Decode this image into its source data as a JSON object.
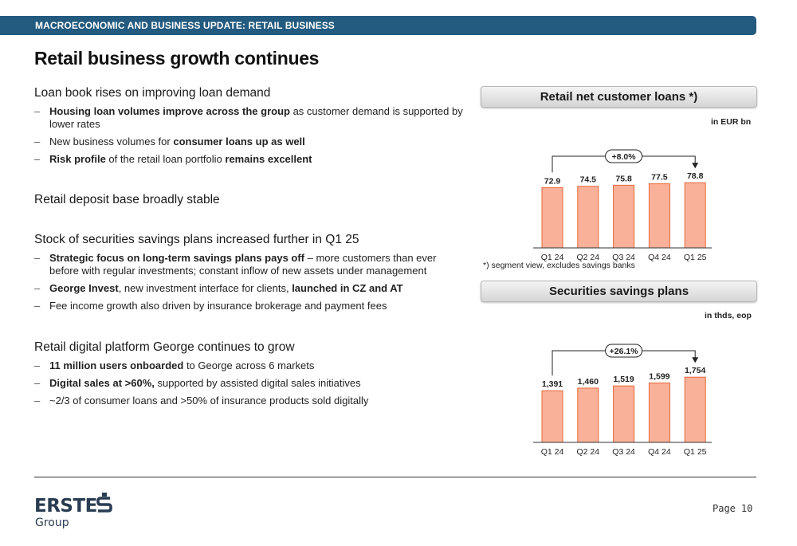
{
  "header": {
    "bar_title": "MACROECONOMIC AND BUSINESS UPDATE: RETAIL BUSINESS"
  },
  "title": "Retail business growth continues",
  "sections": [
    {
      "heading": "Loan book rises on improving loan demand",
      "items": [
        [
          {
            "t": "Housing loan volumes improve across the group",
            "b": true
          },
          {
            "t": " as customer demand is supported by lower rates",
            "b": false
          }
        ],
        [
          {
            "t": "New business volumes for ",
            "b": false
          },
          {
            "t": "consumer loans up as well",
            "b": true
          }
        ],
        [
          {
            "t": "Risk profile",
            "b": true
          },
          {
            "t": " of the retail loan portfolio ",
            "b": false
          },
          {
            "t": "remains excellent",
            "b": true
          }
        ]
      ]
    },
    {
      "heading": "Retail deposit base broadly stable",
      "items": []
    },
    {
      "heading": "Stock of securities savings plans increased further in Q1 25",
      "items": [
        [
          {
            "t": "Strategic focus on long-term savings plans pays off",
            "b": true
          },
          {
            "t": " – more customers than ever before with regular investments; constant inflow of new assets under management",
            "b": false
          }
        ],
        [
          {
            "t": "George Invest",
            "b": true
          },
          {
            "t": ", new investment interface for clients, ",
            "b": false
          },
          {
            "t": "launched in CZ and AT",
            "b": true
          }
        ],
        [
          {
            "t": "Fee income growth also driven by insurance brokerage and payment fees",
            "b": false
          }
        ]
      ]
    },
    {
      "heading": "Retail digital platform George continues to grow",
      "items": [
        [
          {
            "t": "11 million users onboarded",
            "b": true
          },
          {
            "t": " to George across 6 markets",
            "b": false
          }
        ],
        [
          {
            "t": "Digital sales at >60%,",
            "b": true
          },
          {
            "t": " supported by assisted digital sales initiatives",
            "b": false
          }
        ],
        [
          {
            "t": "~2/3 of consumer loans and >50% of insurance products sold digitally",
            "b": false
          }
        ]
      ]
    }
  ],
  "chart_data": [
    {
      "type": "bar",
      "title": "Retail net customer loans *)",
      "unit": "in EUR bn",
      "categories": [
        "Q1 24",
        "Q2 24",
        "Q3 24",
        "Q4 24",
        "Q1 25"
      ],
      "values": [
        72.9,
        74.5,
        75.8,
        77.5,
        78.8
      ],
      "value_labels": [
        "72.9",
        "74.5",
        "75.8",
        "77.5",
        "78.8"
      ],
      "ylim": [
        0,
        80
      ],
      "growth_label": "+8.0%",
      "footnote": "*) segment view, excludes savings banks",
      "colors": {
        "bar_fill": "#f9b199",
        "bar_stroke": "#e8673a",
        "axis": "#333333"
      }
    },
    {
      "type": "bar",
      "title": "Securities savings plans",
      "unit": "in thds, eop",
      "categories": [
        "Q1 24",
        "Q2 24",
        "Q3 24",
        "Q4 24",
        "Q1 25"
      ],
      "values": [
        1391,
        1460,
        1519,
        1599,
        1754
      ],
      "value_labels": [
        "1,391",
        "1,460",
        "1,519",
        "1,599",
        "1,754"
      ],
      "ylim": [
        0,
        1780
      ],
      "growth_label": "+26.1%",
      "colors": {
        "bar_fill": "#f9b199",
        "bar_stroke": "#e8673a",
        "axis": "#333333"
      }
    }
  ],
  "footer": {
    "logo_text": "ERSTE",
    "logo_sub": "Group",
    "page_label": "Page",
    "page_number": "10"
  }
}
